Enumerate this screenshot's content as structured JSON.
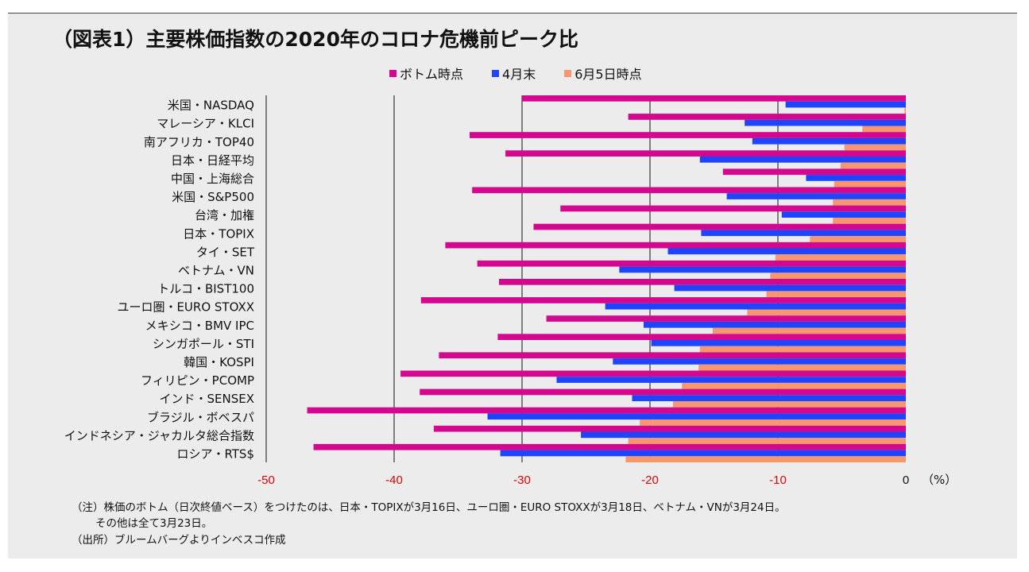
{
  "title": "（図表1）主要株価指数の2020年のコロナ危機前ピーク比",
  "notes": [
    "（注）株価のボトム（日次終値ベース）をつけたのは、日本・TOPIXが3月16日、ユーロ圏・EURO STOXXが3月18日、ベトナム・VNが3月24日。",
    "その他は全て3月23日。",
    "（出所）ブルームバーグよりインベスコ作成"
  ],
  "chart_data": {
    "type": "bar",
    "orientation": "horizontal",
    "title": "（図表1）主要株価指数の2020年のコロナ危機前ピーク比",
    "xlabel": "（%）",
    "xlim": [
      -50,
      0
    ],
    "xticks": [
      "-50",
      "-40",
      "-30",
      "-20",
      "-10",
      "0"
    ],
    "xtick_values": [
      -50,
      -40,
      -30,
      -20,
      -10,
      0
    ],
    "grid": "vertical",
    "legend_position": "top",
    "categories": [
      "米国・NASDAQ",
      "マレーシア・KLCI",
      "南アフリカ・TOP40",
      "日本・日経平均",
      "中国・上海総合",
      "米国・S&P500",
      "台湾・加権",
      "日本・TOPIX",
      "タイ・SET",
      "ベトナム・VN",
      "トルコ・BIST100",
      "ユーロ圏・EURO STOXX",
      "メキシコ・BMV IPC",
      "シンガポール・STI",
      "韓国・KOSPI",
      "フィリピン・PCOMP",
      "インド・SENSEX",
      "ブラジル・ボベスパ",
      "インドネシア・ジャカルタ総合指数",
      "ロシア・RTS$"
    ],
    "series": [
      {
        "name": "ボトム時点",
        "color": "#d4078f",
        "values": [
          -30.0,
          -21.7,
          -34.1,
          -31.3,
          -14.3,
          -33.9,
          -27.0,
          -29.1,
          -36.0,
          -33.5,
          -31.8,
          -37.9,
          -28.1,
          -31.9,
          -36.5,
          -39.5,
          -38.0,
          -46.8,
          -36.9,
          -46.3
        ]
      },
      {
        "name": "4月末",
        "color": "#1f45fc",
        "values": [
          -9.4,
          -12.6,
          -12.0,
          -16.1,
          -7.8,
          -14.0,
          -9.7,
          -16.0,
          -18.6,
          -22.4,
          -18.1,
          -23.5,
          -20.5,
          -19.9,
          -22.9,
          -27.3,
          -21.4,
          -32.7,
          -25.4,
          -31.7
        ]
      },
      {
        "name": "6月5日時点",
        "color": "#f7976f",
        "values": [
          -0.1,
          -3.4,
          -4.8,
          -5.1,
          -5.6,
          -5.7,
          -5.7,
          -7.5,
          -10.2,
          -10.6,
          -10.9,
          -12.4,
          -15.1,
          -16.1,
          -16.2,
          -17.5,
          -18.2,
          -20.8,
          -21.7,
          -21.9
        ]
      }
    ]
  }
}
